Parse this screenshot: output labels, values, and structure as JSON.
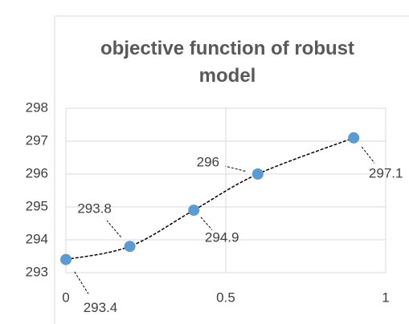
{
  "chart_data": {
    "type": "scatter-line",
    "title": "objective function of robust model",
    "x": [
      0,
      0.2,
      0.4,
      0.6,
      0.9
    ],
    "values": [
      293.4,
      293.8,
      294.9,
      296,
      297.1
    ],
    "color": "#5b9bd5",
    "xlim": [
      0,
      1
    ],
    "xticks": [
      0,
      0.5,
      1
    ],
    "ylim": [
      293,
      298
    ],
    "yticks": [
      293,
      294,
      295,
      296,
      297,
      298
    ],
    "grid": true
  }
}
